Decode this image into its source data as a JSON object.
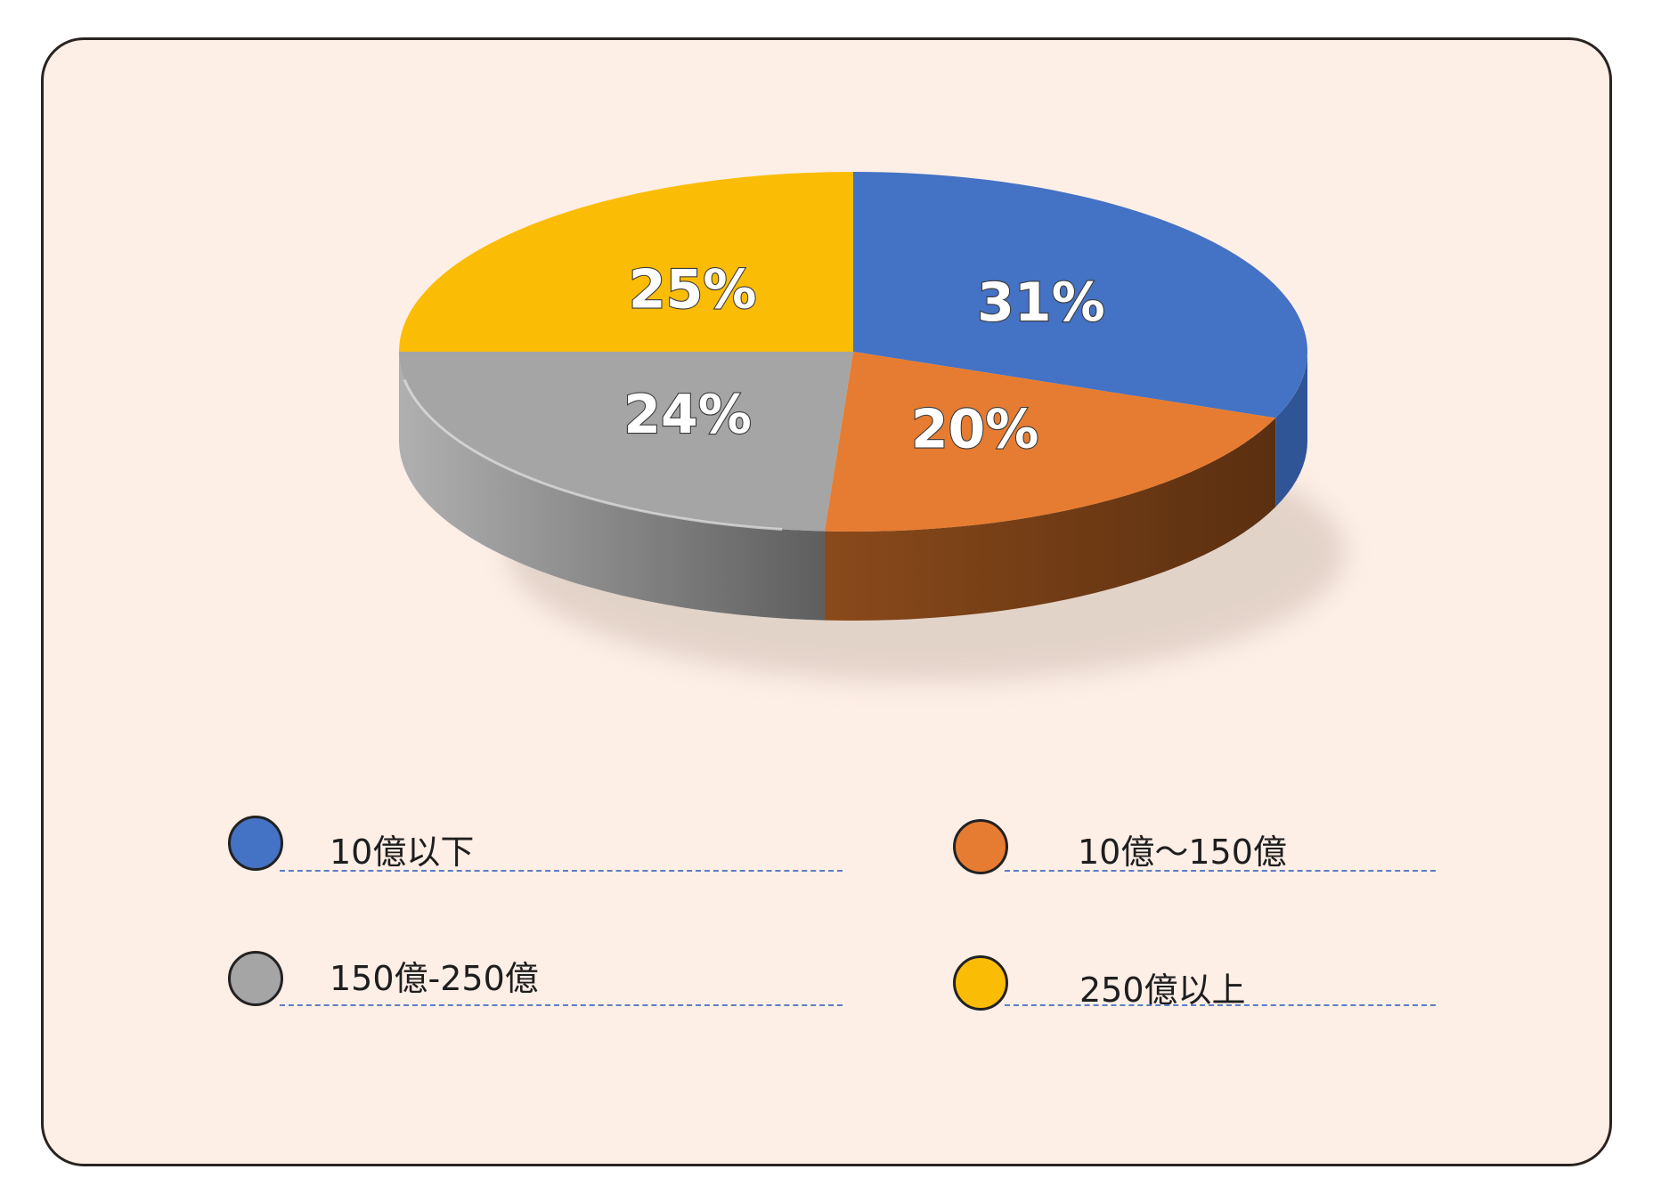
{
  "chart_data": {
    "type": "pie",
    "title": "",
    "slices": [
      {
        "label": "10億以下",
        "value": 31,
        "display": "31%",
        "color": "#4472c4",
        "side_color": "#2f5597"
      },
      {
        "label": "10億～150億",
        "value": 20,
        "display": "20%",
        "color": "#e67c31",
        "side_color": "#6a3914"
      },
      {
        "label": "150億-250億",
        "value": 24,
        "display": "24%",
        "color": "#a5a5a5",
        "side_color": "#8c8c8c"
      },
      {
        "label": "250億以上",
        "value": 25,
        "display": "25%",
        "color": "#fbbc05",
        "side_color": "#b88a00"
      }
    ],
    "legend_position": "bottom",
    "style": "3d"
  },
  "legend": {
    "items": [
      {
        "label": "10億以下",
        "color": "#4472c4"
      },
      {
        "label": "10億～150億",
        "color": "#e67c31"
      },
      {
        "label": "150億-250億",
        "color": "#a5a5a5"
      },
      {
        "label": "250億以上",
        "color": "#fbbc05"
      }
    ]
  }
}
